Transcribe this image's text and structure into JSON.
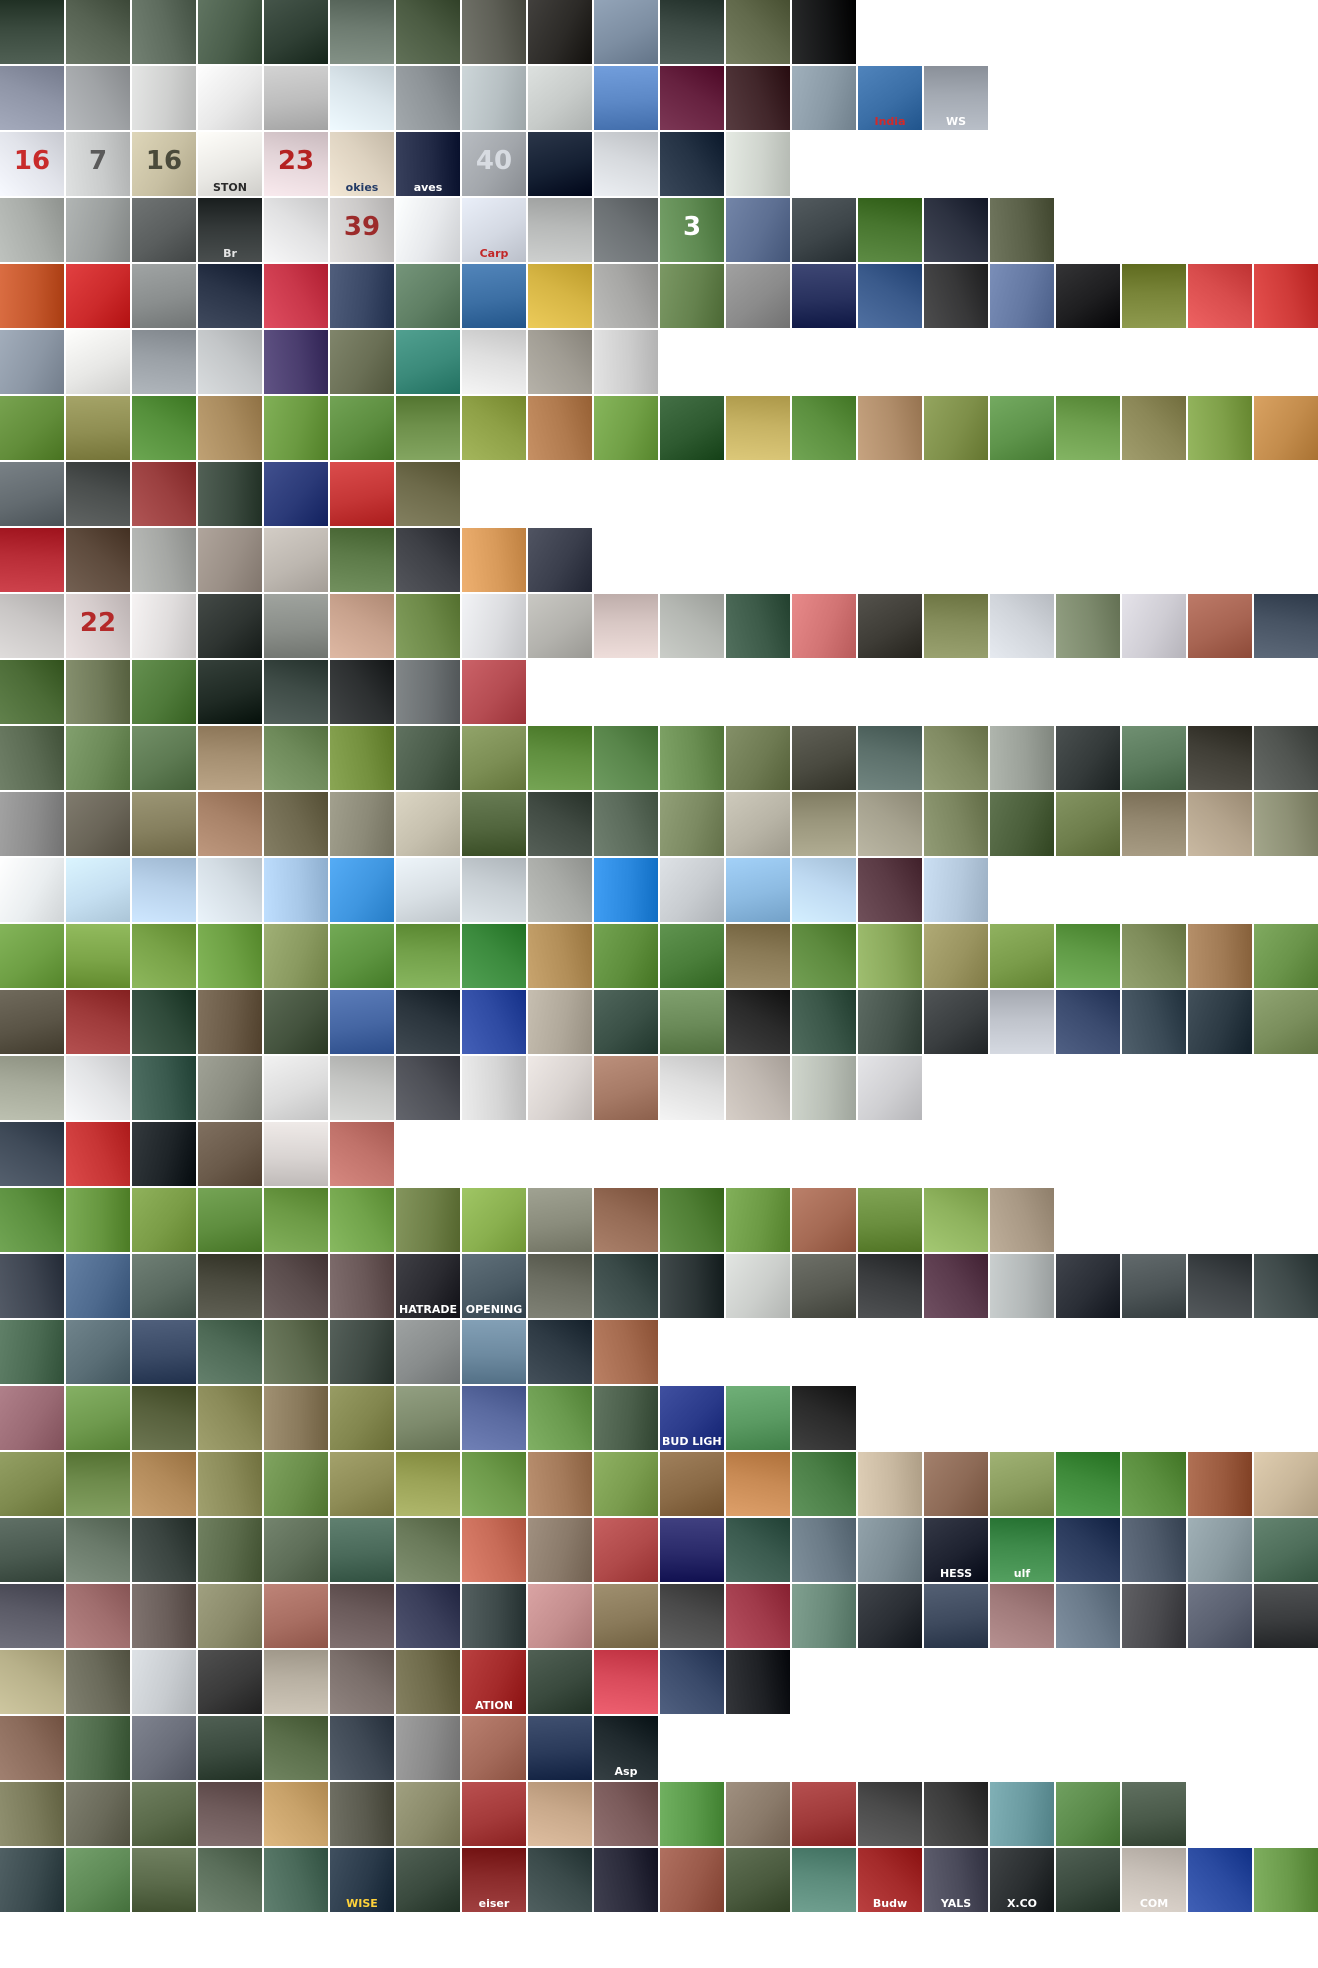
{
  "rows": [
    {
      "label": "crowd",
      "colors": [
        "#3a4a3e",
        "#566252",
        "#5d6b5d",
        "#4a5e4b",
        "#2f3f34",
        "#6d7b70",
        "#4b5b42",
        "#5e5f56",
        "#2c2a27",
        "#7d8ea2",
        "#3c4a44",
        "#61694b",
        "#141516"
      ]
    },
    {
      "label": "scoreboards",
      "colors": [
        "#8e94a6",
        "#a0a3a6",
        "#cfd0cf",
        "#e8e8e8",
        "#bdbdbd",
        "#d9e4ea",
        "#8d9397",
        "#b7c0c3",
        "#c7cbc9",
        "#5c88c6",
        "#66213f",
        "#41262a",
        "#8a9aa6",
        "#3a6ea6",
        "#a3a9b2"
      ],
      "texts": [
        {
          "i": 13,
          "t": "India",
          "c": "#d12a2a"
        },
        {
          "i": 14,
          "t": "WS",
          "c": "#ffffff"
        }
      ]
    },
    {
      "label": "jerseys-numbers",
      "colors": [
        "#e1e3ea",
        "#c9cbcb",
        "#c8c0a3",
        "#e9e8e4",
        "#e3d4d8",
        "#ddd2c0",
        "#222a46",
        "#a2a6ab",
        "#152033",
        "#d6d9dd",
        "#243244",
        "#cfd4cd"
      ],
      "texts": [
        {
          "i": 0,
          "t": "16",
          "c": "#c82b2b",
          "num": true
        },
        {
          "i": 1,
          "t": "7",
          "c": "#5a5a5a",
          "num": true
        },
        {
          "i": 2,
          "t": "16",
          "c": "#4a4a3a",
          "num": true
        },
        {
          "i": 3,
          "t": "STON",
          "c": "#2a2a2a"
        },
        {
          "i": 4,
          "t": "23",
          "c": "#b52222",
          "num": true
        },
        {
          "i": 5,
          "t": "okies",
          "c": "#223a66"
        },
        {
          "i": 6,
          "t": "aves",
          "c": "#ffffff"
        },
        {
          "i": 7,
          "t": "40",
          "c": "#d7dbe1",
          "num": true
        }
      ]
    },
    {
      "label": "jerseys-2",
      "colors": [
        "#a8aca8",
        "#9b9f9e",
        "#5a5e5e",
        "#333838",
        "#e1e1e2",
        "#cccac9",
        "#e7e9ec",
        "#d4d9e3",
        "#b7b9b8",
        "#6b7073",
        "#5f8a52",
        "#5d6f92",
        "#3d4549",
        "#47752e",
        "#2c3140",
        "#5a6048"
      ],
      "texts": [
        {
          "i": 3,
          "t": "Br",
          "c": "#e5e5e5"
        },
        {
          "i": 5,
          "t": "39",
          "c": "#9c2b2b",
          "num": true
        },
        {
          "i": 7,
          "t": "Carp",
          "c": "#c22727"
        },
        {
          "i": 10,
          "t": "3",
          "c": "#ffffff",
          "num": true
        }
      ]
    },
    {
      "label": "caps",
      "colors": [
        "#c4572c",
        "#cc2a2b",
        "#8a8e8e",
        "#2a3448",
        "#c9374a",
        "#3a4866",
        "#5f7f64",
        "#3c6fa4",
        "#d6b544",
        "#a6a6a4",
        "#65824e",
        "#8b8b8b",
        "#28315e",
        "#3a5a8b",
        "#373738",
        "#6478a2",
        "#1e1e20",
        "#788438",
        "#d84c4c",
        "#cf3a38"
      ]
    },
    {
      "label": "uniforms-pants",
      "colors": [
        "#8c97a5",
        "#e8e8e6",
        "#9aa0a6",
        "#c3c6c8",
        "#4a3d6e",
        "#6a6f55",
        "#3b8a7a",
        "#dfdfdf",
        "#a09c93",
        "#cdcdcd"
      ]
    },
    {
      "label": "infield",
      "colors": [
        "#628d3a",
        "#8f8e52",
        "#55903b",
        "#a98b5e",
        "#6b9a41",
        "#5c8d3f",
        "#6d8f4a",
        "#8ea046",
        "#b07a4e",
        "#71a046",
        "#2e5a30",
        "#c6b263",
        "#5b8f3e",
        "#b08d6a",
        "#7e8f49",
        "#5e944b",
        "#6d9e4d",
        "#8b8757",
        "#7fa049",
        "#c38c4c"
      ]
    },
    {
      "label": "bats-gloves",
      "colors": [
        "#636b70",
        "#4a4e4d",
        "#9a3f3f",
        "#3b4a3f",
        "#2b3a78",
        "#c53636",
        "#6d6a4a"
      ]
    },
    {
      "label": "hands",
      "colors": [
        "#b82c36",
        "#5d4a3c",
        "#a5a7a4",
        "#9a8f86",
        "#bdb7b0",
        "#5c7a48",
        "#3e4046",
        "#d89a5a",
        "#3a3e4c"
      ]
    },
    {
      "label": "jersey-details",
      "colors": [
        "#c9c6c5",
        "#d5cccc",
        "#e0dddd",
        "#2e3431",
        "#8a8e89",
        "#c8a28d",
        "#6d8948",
        "#dcdde0",
        "#b3b2ad",
        "#d8c7c4",
        "#b4b7b2",
        "#3c5a48",
        "#d27474",
        "#3e3c36",
        "#848c5a",
        "#d0d4da",
        "#7d8a6d",
        "#cfcdd4",
        "#a76452",
        "#475363"
      ],
      "texts": [
        {
          "i": 1,
          "t": "22",
          "c": "#b42a2a",
          "num": true
        }
      ]
    },
    {
      "label": "field-views",
      "colors": [
        "#4b6b36",
        "#707a59",
        "#4f7a3a",
        "#1f2a24",
        "#3e4b46",
        "#2c2f30",
        "#6b7072",
        "#b54c52"
      ]
    },
    {
      "label": "stadium-wide",
      "colors": [
        "#5a6a52",
        "#6c8a58",
        "#5d7a52",
        "#a48e70",
        "#6e8a5a",
        "#74903e",
        "#4a5c4a",
        "#7c8e54",
        "#5f8e3e",
        "#58854a",
        "#6a8e52",
        "#6e7a52",
        "#4a4a40",
        "#5b6f6a",
        "#808a62",
        "#9aa098",
        "#343a3a",
        "#5a7a5c",
        "#403e36",
        "#505450"
      ]
    },
    {
      "label": "legs-shoes",
      "colors": [
        "#8c8c8c",
        "#6a6558",
        "#86805f",
        "#a88268",
        "#6e684e",
        "#8c8a78",
        "#c6c0ae",
        "#52663e",
        "#404a42",
        "#5a6a5a",
        "#7c8a62",
        "#b8b4a6",
        "#9a967c",
        "#a5a18e",
        "#7c8660",
        "#4a5e3a",
        "#6e7e4c",
        "#92866e",
        "#b3a38c",
        "#8d9075"
      ]
    },
    {
      "label": "light-towers",
      "colors": [
        "#eaeef0",
        "#c5dff1",
        "#b8d1ea",
        "#d4dde4",
        "#a8c8e8",
        "#3f96e0",
        "#d8dfe4",
        "#c8cfd4",
        "#a8aaa6",
        "#2a88de",
        "#c8ccd0",
        "#8dbbe2",
        "#bed9f1",
        "#5a3a44",
        "#b5c9dd"
      ]
    },
    {
      "label": "outfield",
      "colors": [
        "#6e9f44",
        "#7ca548",
        "#78a247",
        "#6da043",
        "#8a9a60",
        "#5d9440",
        "#72a049",
        "#3b8a3d",
        "#b28e58",
        "#5e8e3c",
        "#4a7e3a",
        "#8a7a56",
        "#5d8a3e",
        "#89a85a",
        "#9a9460",
        "#7a9c4a",
        "#5f9a45",
        "#7e8c5a",
        "#a07a54",
        "#6a944a"
      ]
    },
    {
      "label": "players-closeup",
      "colors": [
        "#5a5446",
        "#9e3a3a",
        "#2f4a3a",
        "#6a5a46",
        "#44533e",
        "#4566a3",
        "#2a343c",
        "#2e4aa2",
        "#b0a89a",
        "#3a5046",
        "#6a8a58",
        "#2a2a2a",
        "#3a5648",
        "#46544c",
        "#3a3e40",
        "#bfc3cb",
        "#3a4a6e",
        "#3a4a56",
        "#2c3a44",
        "#7a8e5c"
      ]
    },
    {
      "label": "pinstripes",
      "colors": [
        "#a6aa9a",
        "#e2e3e5",
        "#3a5a4e",
        "#8a8c80",
        "#dcdcdc",
        "#c3c4c2",
        "#4d4f56",
        "#d6d6d6",
        "#d9d3d0",
        "#a67a66",
        "#dedede",
        "#c0b8b1",
        "#b9bfb6",
        "#cfcfd2"
      ]
    },
    {
      "label": "faces",
      "colors": [
        "#3f4a58",
        "#c63434",
        "#1e2428",
        "#6a5a4a",
        "#d9d4d2",
        "#c0726a"
      ]
    },
    {
      "label": "grass-closeup",
      "colors": [
        "#5b8f3e",
        "#66963f",
        "#7a9c46",
        "#5f8e3f",
        "#6c9a45",
        "#71a34a",
        "#6e7f47",
        "#8ab04f",
        "#8a8c7c",
        "#946a54",
        "#4f7e34",
        "#6c9a44",
        "#a56a54",
        "#6a8e3e",
        "#8eb25d",
        "#a89884"
      ]
    },
    {
      "label": "stands-ads",
      "colors": [
        "#3d4450",
        "#4e6a8e",
        "#5a6a60",
        "#4a4a3e",
        "#5a4c4c",
        "#6a5858",
        "#2a2a30",
        "#4a5a64",
        "#6a6c60",
        "#3a4a48",
        "#2c3536",
        "#cccfcc",
        "#585a52",
        "#3a3c3e",
        "#5a3a4c",
        "#b3b8b8",
        "#2a2e36",
        "#4c5456",
        "#3e4346",
        "#3f4a4a"
      ],
      "texts": [
        {
          "i": 6,
          "t": "HATRADE",
          "c": "#ffffff"
        },
        {
          "i": 7,
          "t": "OPENING",
          "c": "#ffffff"
        }
      ]
    },
    {
      "label": "stands-seats",
      "colors": [
        "#4a6a52",
        "#5a6e76",
        "#3a4a66",
        "#4e6a56",
        "#5d6a4e",
        "#3f4a44",
        "#888c8c",
        "#6d8aa0",
        "#2e3a44",
        "#a46a4e"
      ]
    },
    {
      "label": "ballpark-misc",
      "colors": [
        "#9a6a74",
        "#6f9a4e",
        "#57603c",
        "#8a8a58",
        "#8a7a5c",
        "#82864e",
        "#7d8a6c",
        "#5a6aa0",
        "#6a9a4e",
        "#4a5e4a",
        "#2a3a8a",
        "#5a9a62",
        "#2a2a2a"
      ],
      "texts": [
        {
          "i": 10,
          "t": "BUD LIGHT",
          "c": "#ffffff"
        }
      ]
    },
    {
      "label": "diamond-dirt",
      "colors": [
        "#7e8a4e",
        "#6d8a4b",
        "#b28a5a",
        "#8a8a58",
        "#6a8e4a",
        "#8e8c56",
        "#9aa256",
        "#6d9a4a",
        "#a47a5a",
        "#7a9c4e",
        "#8a6a46",
        "#c88a54",
        "#4a7e46",
        "#c8b8a0",
        "#8d6a56",
        "#8a9c5e",
        "#3e8a3a",
        "#5a8e3e",
        "#9a5a3e",
        "#c9b79a"
      ]
    },
    {
      "label": "outfield-walls",
      "colors": [
        "#4a5a50",
        "#6a7a6a",
        "#3a4440",
        "#5a6a4a",
        "#5e6e58",
        "#4a6a5a",
        "#6a7a5a",
        "#c86c58",
        "#8a7a6a",
        "#b04a4a",
        "#2a2a6a",
        "#3a5a4e",
        "#6a7a86",
        "#7c8c94",
        "#1e2230",
        "#3e8a4a",
        "#2a3a5c",
        "#4e5a6a",
        "#8a9aa0",
        "#4e6e5a"
      ],
      "texts": [
        {
          "i": 15,
          "t": "ulf",
          "c": "#ffffff"
        },
        {
          "i": 14,
          "t": "HESS",
          "c": "#ffffff"
        }
      ]
    },
    {
      "label": "crowd-dense",
      "colors": [
        "#5a5a66",
        "#a06e6e",
        "#6a5e5a",
        "#8a8a6a",
        "#a86e62",
        "#6a5a5a",
        "#3a3e5a",
        "#3e4a4a",
        "#c48e8e",
        "#8a7a5a",
        "#4a4a4a",
        "#a03a4a",
        "#6a8a7a",
        "#2a2e34",
        "#3e4a5e",
        "#a07a7a",
        "#6a7a8a",
        "#4a4a4e",
        "#5a6070",
        "#3a3c3e"
      ]
    },
    {
      "label": "night-lights",
      "colors": [
        "#b8b18a",
        "#6a6a5a",
        "#c8ccd0",
        "#3a3a3a",
        "#b8b0a2",
        "#7a6e6a",
        "#6e6a4a",
        "#a42a2a",
        "#3a4a3e",
        "#d84a5a",
        "#3a4a6a",
        "#1e2024"
      ],
      "texts": [
        {
          "i": 7,
          "t": "ATION",
          "c": "#ffffff"
        }
      ]
    },
    {
      "label": "spectators",
      "colors": [
        "#8a6a5a",
        "#4e6a4a",
        "#6a6e7a",
        "#3a4a3e",
        "#5a6e4a",
        "#3e4854",
        "#8a8a8a",
        "#a46a5a",
        "#2a3a5a",
        "#202a2e"
      ],
      "texts": [
        {
          "i": 9,
          "t": "Asp",
          "c": "#ffffff"
        }
      ]
    },
    {
      "label": "people",
      "colors": [
        "#7a7a5a",
        "#6a6a5a",
        "#5a6a4a",
        "#6e5a5a",
        "#c8a26a",
        "#5a5a4e",
        "#8a8a6a",
        "#a43a3a",
        "#c8a88a",
        "#7a5a5a",
        "#5a9a4a",
        "#8a7a6a",
        "#a03a3a",
        "#4a4a4a",
        "#3a3a3a",
        "#6a9aa0",
        "#5a8a4a",
        "#4a5a4a"
      ]
    },
    {
      "label": "signage",
      "colors": [
        "#3a4a4e",
        "#5e8a56",
        "#5a6a4a",
        "#5a6e5a",
        "#4a6a5a",
        "#2a3a4a",
        "#3a4a3e",
        "#8a2a2a",
        "#3a4a4a",
        "#2a2a3a",
        "#9a5a4a",
        "#4a5a3e",
        "#5a8a7a",
        "#a42a2a",
        "#4a4a5a",
        "#2a2e30",
        "#3a4a3e",
        "#c8c0b8",
        "#2a4aa0",
        "#6a9a4a"
      ],
      "texts": [
        {
          "i": 5,
          "t": "WISE",
          "c": "#ffd23a"
        },
        {
          "i": 7,
          "t": "eiser",
          "c": "#ffffff"
        },
        {
          "i": 13,
          "t": "Budw",
          "c": "#ffffff"
        },
        {
          "i": 14,
          "t": "YALS",
          "c": "#ffffff"
        },
        {
          "i": 15,
          "t": "X.CO",
          "c": "#ffffff"
        },
        {
          "i": 17,
          "t": "COM",
          "c": "#ffffff"
        }
      ]
    }
  ]
}
